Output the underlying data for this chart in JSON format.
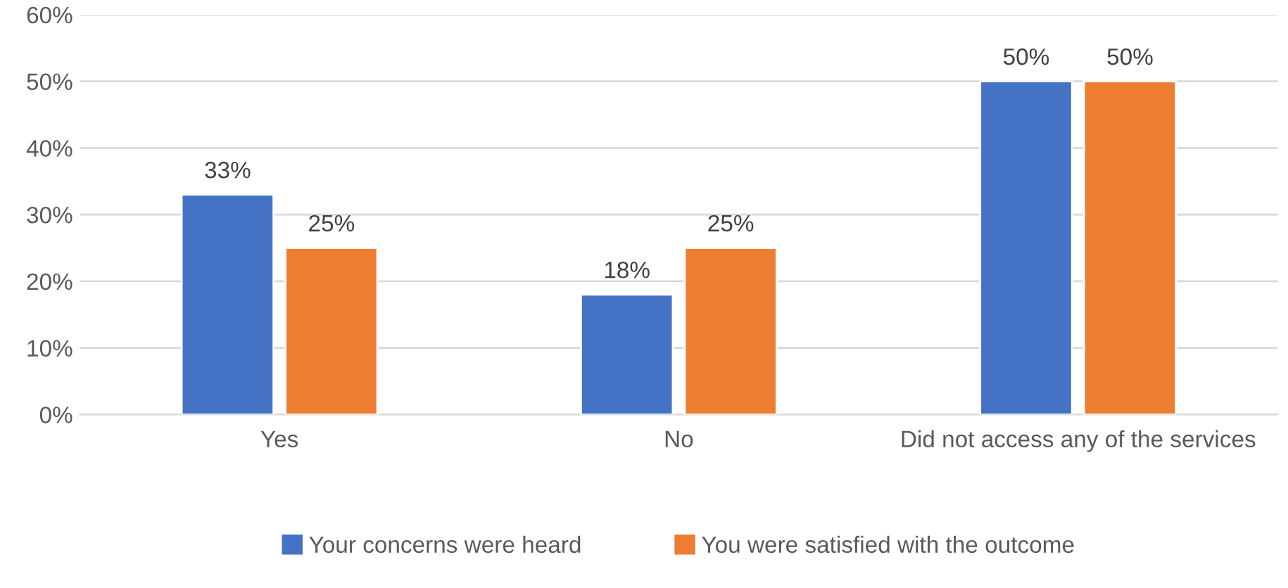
{
  "chart_data": {
    "type": "bar",
    "categories": [
      "Yes",
      "No",
      "Did not access any of the services"
    ],
    "series": [
      {
        "name": "Your concerns were heard",
        "color": "#4472c4",
        "values": [
          33,
          18,
          50
        ],
        "value_labels": [
          "33%",
          "18%",
          "50%"
        ]
      },
      {
        "name": "You were satisfied with the outcome",
        "color": "#ed7d31",
        "values": [
          25,
          25,
          50
        ],
        "value_labels": [
          "25%",
          "25%",
          "50%"
        ]
      }
    ],
    "ylim": [
      0,
      60
    ],
    "yticks": [
      {
        "value": 0,
        "label": "0%"
      },
      {
        "value": 10,
        "label": "10%"
      },
      {
        "value": 20,
        "label": "20%"
      },
      {
        "value": 30,
        "label": "30%"
      },
      {
        "value": 40,
        "label": "40%"
      },
      {
        "value": 50,
        "label": "50%"
      },
      {
        "value": 60,
        "label": "60%"
      }
    ],
    "grid": "y",
    "legend": "bottom"
  }
}
